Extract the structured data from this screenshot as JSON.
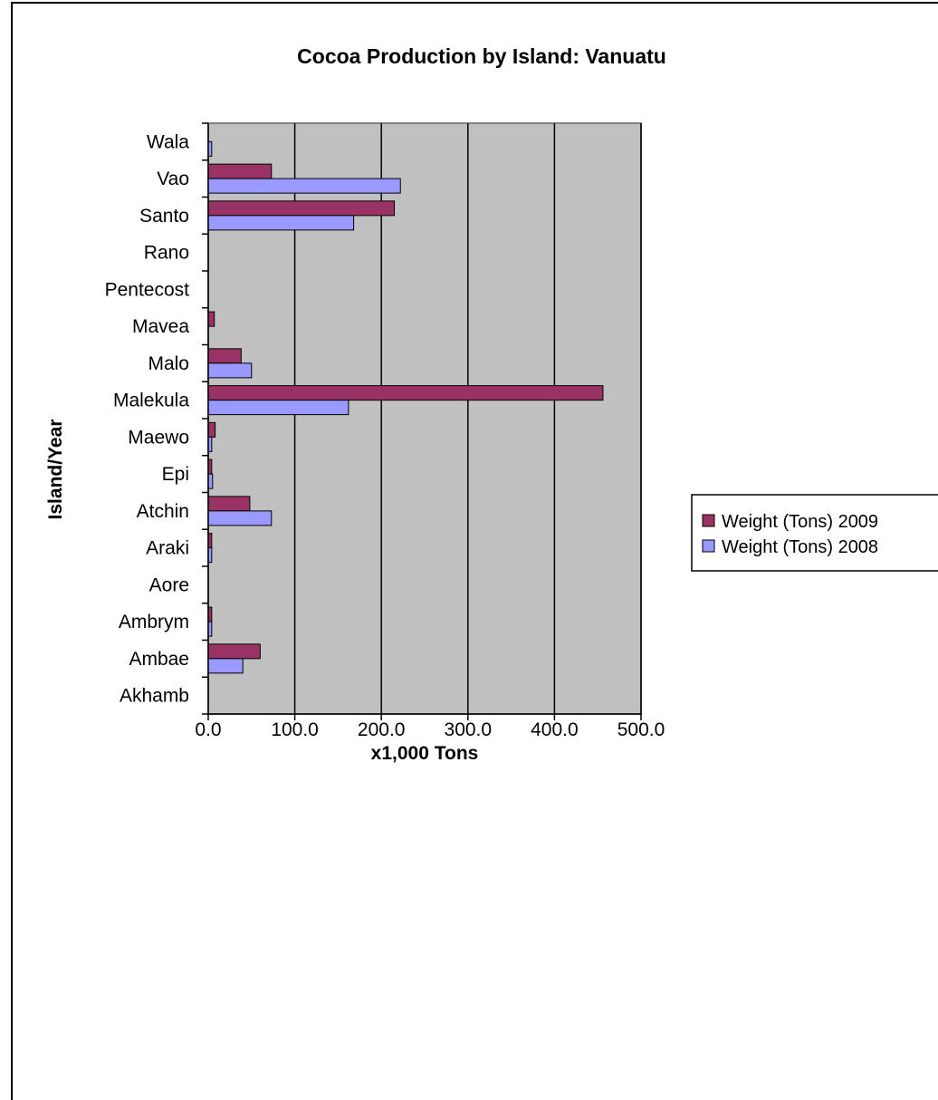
{
  "chart_data": {
    "type": "bar",
    "orientation": "horizontal",
    "title": "Cocoa Production by Island: Vanuatu",
    "xlabel": "x1,000 Tons",
    "ylabel": "Island/Year",
    "xlim": [
      0,
      500
    ],
    "xticks": [
      "0.0",
      "100.0",
      "200.0",
      "300.0",
      "400.0",
      "500.0"
    ],
    "grid": true,
    "legend_position": "right",
    "categories": [
      "Akhamb",
      "Ambae",
      "Ambrym",
      "Aore",
      "Araki",
      "Atchin",
      "Epi",
      "Maewo",
      "Malekula",
      "Malo",
      "Mavea",
      "Pentecost",
      "Rano",
      "Santo",
      "Vao",
      "Wala"
    ],
    "series": [
      {
        "name": "Weight (Tons) 2009",
        "color": "#993366",
        "values": [
          0,
          60,
          4,
          0,
          4,
          48,
          4,
          8,
          456,
          38,
          7,
          0,
          0,
          215,
          73,
          0
        ]
      },
      {
        "name": "Weight (Tons) 2008",
        "color": "#9999ff",
        "values": [
          0,
          40,
          4,
          0,
          4,
          73,
          5,
          4,
          162,
          50,
          0,
          0,
          0,
          168,
          222,
          4
        ]
      }
    ],
    "plot_background": "#c0c0c0"
  }
}
